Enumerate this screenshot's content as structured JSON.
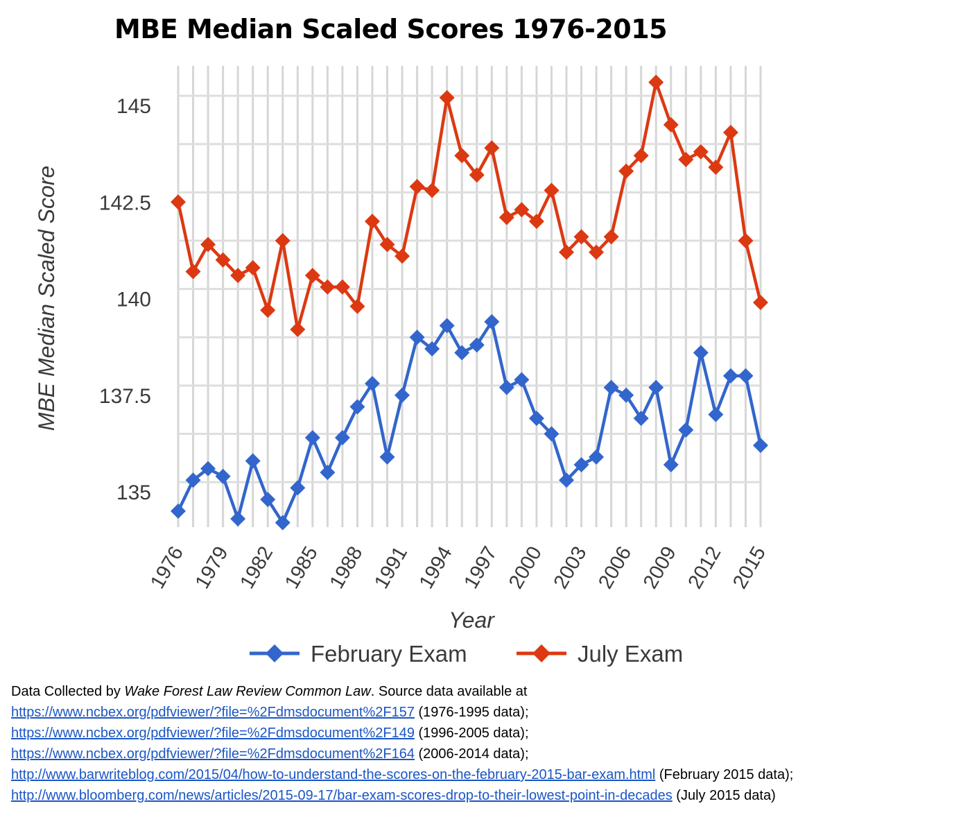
{
  "chart_data": {
    "type": "line",
    "title": "MBE Median Scaled Scores 1976-2015",
    "xlabel": "Year",
    "ylabel": "MBE Median Scaled Score",
    "xlim": [
      1976,
      2015
    ],
    "ylim": [
      134,
      146
    ],
    "yticks": [
      135,
      137.5,
      140,
      142.5,
      145
    ],
    "ytick_labels": [
      "135",
      "137.5",
      "140",
      "142.5",
      "145"
    ],
    "xticks": [
      1976,
      1979,
      1982,
      1985,
      1988,
      1991,
      1994,
      1997,
      2000,
      2003,
      2006,
      2009,
      2012,
      2015
    ],
    "xtick_labels": [
      "1976",
      "1979",
      "1982",
      "1985",
      "1988",
      "1991",
      "1994",
      "1997",
      "2000",
      "2003",
      "2006",
      "2009",
      "2012",
      "2015"
    ],
    "grid": true,
    "legend_position": "bottom",
    "x": [
      1976,
      1977,
      1978,
      1979,
      1980,
      1981,
      1982,
      1983,
      1984,
      1985,
      1986,
      1987,
      1988,
      1989,
      1990,
      1991,
      1992,
      1993,
      1994,
      1995,
      1996,
      1997,
      1998,
      1999,
      2000,
      2001,
      2002,
      2003,
      2004,
      2005,
      2006,
      2007,
      2008,
      2009,
      2010,
      2011,
      2012,
      2013,
      2014,
      2015
    ],
    "series": [
      {
        "name": "February Exam",
        "color": "#3366cc",
        "values": [
          134.5,
          135.3,
          135.6,
          135.4,
          134.3,
          135.8,
          134.8,
          134.2,
          135.1,
          136.4,
          135.5,
          136.4,
          137.2,
          137.8,
          135.9,
          137.5,
          139.0,
          138.7,
          139.3,
          138.6,
          138.8,
          139.4,
          137.7,
          137.9,
          136.9,
          136.5,
          135.3,
          135.7,
          135.9,
          137.7,
          137.5,
          136.9,
          137.7,
          135.7,
          136.6,
          138.6,
          137.0,
          138.0,
          138.0,
          136.2
        ]
      },
      {
        "name": "July Exam",
        "color": "#dc3912",
        "values": [
          142.5,
          140.7,
          141.4,
          141.0,
          140.6,
          140.8,
          139.7,
          141.5,
          139.2,
          140.6,
          140.3,
          140.3,
          139.8,
          142.0,
          141.4,
          141.1,
          142.9,
          142.8,
          145.2,
          143.7,
          143.2,
          143.9,
          142.1,
          142.3,
          142.0,
          142.8,
          141.2,
          141.6,
          141.2,
          141.6,
          143.3,
          143.7,
          145.6,
          144.5,
          143.6,
          143.8,
          143.4,
          144.3,
          141.5,
          139.9
        ]
      }
    ]
  },
  "notes": {
    "line1_prefix": "Data Collected by ",
    "line1_source": "Wake Forest Law Review Common Law",
    "line1_suffix": ". Source data available at",
    "links": [
      {
        "url": "https://www.ncbex.org/pdfviewer/?file=%2Fdmsdocument%2F157",
        "desc": " (1976-1995 data);"
      },
      {
        "url": "https://www.ncbex.org/pdfviewer/?file=%2Fdmsdocument%2F149",
        "desc": " (1996-2005 data);"
      },
      {
        "url": "https://www.ncbex.org/pdfviewer/?file=%2Fdmsdocument%2F164",
        "desc": " (2006-2014 data);"
      },
      {
        "url": "http://www.barwriteblog.com/2015/04/how-to-understand-the-scores-on-the-february-2015-bar-exam.html",
        "desc": " (February 2015 data);"
      },
      {
        "url": "http://www.bloomberg.com/news/articles/2015-09-17/bar-exam-scores-drop-to-their-lowest-point-in-decades",
        "desc": " (July 2015 data)"
      }
    ]
  }
}
